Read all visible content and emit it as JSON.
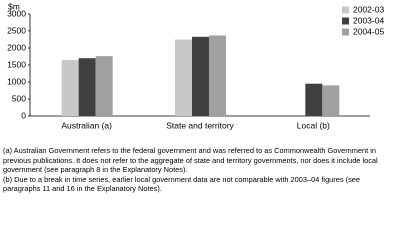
{
  "chart_data": {
    "type": "bar",
    "y_label": "$m",
    "categories": [
      "Australian (a)",
      "State and territory",
      "Local (b)"
    ],
    "series": [
      {
        "name": "2002-03",
        "color": "#c8c8c8",
        "values": [
          1650,
          2250,
          null
        ]
      },
      {
        "name": "2003-04",
        "color": "#404040",
        "values": [
          1700,
          2330,
          950
        ]
      },
      {
        "name": "2004-05",
        "color": "#a0a0a0",
        "values": [
          1760,
          2370,
          900
        ]
      }
    ],
    "ylim": [
      0,
      3000
    ],
    "yticks": [
      0,
      500,
      1000,
      1500,
      2000,
      2500,
      3000
    ],
    "notes": [
      "(a) Australian Government refers to the federal government and was referred to as Commonwealth Government in previous publications. It does not refer to the aggregate of state and territory governments, nor does it include local government (see paragraph 8 in the Explanatory Notes).",
      "(b) Due to a break in time series, earlier local government data are not comparable with 2003–04 figures (see paragraphs 11 and 16 in the Explanatory Notes)."
    ]
  }
}
